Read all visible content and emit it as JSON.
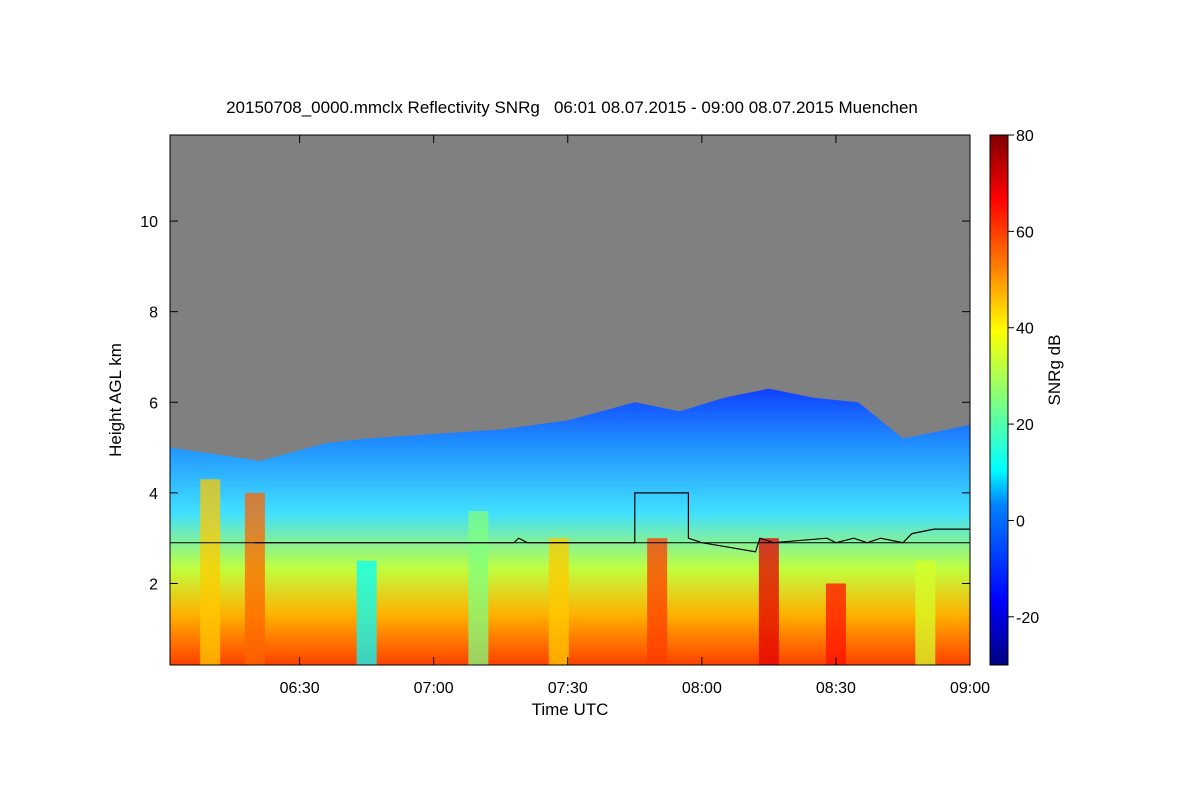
{
  "chart_data": {
    "type": "heatmap",
    "title": "20150708_0000.mmclx Reflectivity SNRg   06:01 08.07.2015 - 09:00 08.07.2015 Muenchen",
    "xlabel": "Time UTC",
    "ylabel": "Height AGL km",
    "x_range_minutes_utc": [
      361,
      540
    ],
    "y_range_km": [
      0.2,
      11.9
    ],
    "x_ticks": [
      {
        "value": 390,
        "label": "06:30"
      },
      {
        "value": 420,
        "label": "07:00"
      },
      {
        "value": 450,
        "label": "07:30"
      },
      {
        "value": 480,
        "label": "08:00"
      },
      {
        "value": 510,
        "label": "08:30"
      },
      {
        "value": 540,
        "label": "09:00"
      }
    ],
    "y_ticks": [
      {
        "value": 2,
        "label": "2"
      },
      {
        "value": 4,
        "label": "4"
      },
      {
        "value": 6,
        "label": "6"
      },
      {
        "value": 8,
        "label": "8"
      },
      {
        "value": 10,
        "label": "10"
      }
    ],
    "colorbar": {
      "label": "SNRg dB",
      "range": [
        -30,
        80
      ],
      "ticks": [
        {
          "value": -20,
          "label": "-20"
        },
        {
          "value": 0,
          "label": "0"
        },
        {
          "value": 20,
          "label": "20"
        },
        {
          "value": 40,
          "label": "40"
        },
        {
          "value": 60,
          "label": "60"
        },
        {
          "value": 80,
          "label": "80"
        }
      ]
    },
    "no_signal_color": "#808080",
    "horizontal_reference_km": 2.9,
    "cloud_top_km": [
      {
        "t": 361,
        "h": 5.0
      },
      {
        "t": 375,
        "h": 4.8
      },
      {
        "t": 381,
        "h": 4.7
      },
      {
        "t": 396,
        "h": 5.1
      },
      {
        "t": 405,
        "h": 5.2
      },
      {
        "t": 420,
        "h": 5.3
      },
      {
        "t": 435,
        "h": 5.4
      },
      {
        "t": 450,
        "h": 5.6
      },
      {
        "t": 465,
        "h": 6.0
      },
      {
        "t": 475,
        "h": 5.8
      },
      {
        "t": 485,
        "h": 6.1
      },
      {
        "t": 495,
        "h": 6.3
      },
      {
        "t": 505,
        "h": 6.1
      },
      {
        "t": 515,
        "h": 6.0
      },
      {
        "t": 525,
        "h": 5.2
      },
      {
        "t": 535,
        "h": 5.4
      },
      {
        "t": 540,
        "h": 5.5
      }
    ],
    "layer_height_line_km": [
      {
        "t": 380,
        "h": 2.9
      },
      {
        "t": 438,
        "h": 2.9
      },
      {
        "t": 439,
        "h": 3.0
      },
      {
        "t": 441,
        "h": 2.9
      },
      {
        "t": 465,
        "h": 2.9
      },
      {
        "t": 465,
        "h": 4.0
      },
      {
        "t": 477,
        "h": 4.0
      },
      {
        "t": 477,
        "h": 3.0
      },
      {
        "t": 480,
        "h": 2.9
      },
      {
        "t": 486,
        "h": 2.8
      },
      {
        "t": 492,
        "h": 2.7
      },
      {
        "t": 493,
        "h": 3.0
      },
      {
        "t": 496,
        "h": 2.9
      },
      {
        "t": 508,
        "h": 3.0
      },
      {
        "t": 510,
        "h": 2.9
      },
      {
        "t": 514,
        "h": 3.0
      },
      {
        "t": 517,
        "h": 2.9
      },
      {
        "t": 520,
        "h": 3.0
      },
      {
        "t": 525,
        "h": 2.9
      },
      {
        "t": 527,
        "h": 3.1
      },
      {
        "t": 532,
        "h": 3.2
      },
      {
        "t": 540,
        "h": 3.2
      }
    ],
    "snr_columns_db": [
      {
        "t": 370,
        "h_max": 4.3,
        "snr": 45
      },
      {
        "t": 380,
        "h_max": 4.0,
        "snr": 55
      },
      {
        "t": 405,
        "h_max": 2.5,
        "snr": 10
      },
      {
        "t": 430,
        "h_max": 3.6,
        "snr": 25
      },
      {
        "t": 448,
        "h_max": 3.0,
        "snr": 45
      },
      {
        "t": 470,
        "h_max": 3.0,
        "snr": 60
      },
      {
        "t": 495,
        "h_max": 3.0,
        "snr": 70
      },
      {
        "t": 510,
        "h_max": 2.0,
        "snr": 65
      },
      {
        "t": 530,
        "h_max": 2.5,
        "snr": 35
      }
    ]
  }
}
